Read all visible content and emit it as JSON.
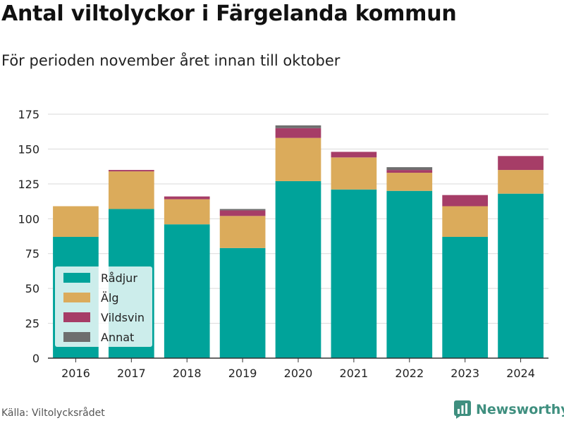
{
  "title": "Antal viltolyckor i Färgelanda kommun",
  "subtitle": "För perioden november året innan till oktober",
  "source": "Källa: Viltolycksrådet",
  "brand": {
    "name": "Newsworthy",
    "icon": "newsworthy-logo-icon",
    "color": "#3f8f7f"
  },
  "chart_data": {
    "type": "bar",
    "stacked": true,
    "categories": [
      "2016",
      "2017",
      "2018",
      "2019",
      "2020",
      "2021",
      "2022",
      "2023",
      "2024"
    ],
    "series": [
      {
        "name": "Rådjur",
        "color": "#00a39a",
        "values": [
          87,
          107,
          96,
          79,
          127,
          121,
          120,
          87,
          118
        ]
      },
      {
        "name": "Älg",
        "color": "#dbab5b",
        "values": [
          22,
          27,
          18,
          23,
          31,
          23,
          13,
          22,
          17
        ]
      },
      {
        "name": "Vildsvin",
        "color": "#a63d67",
        "values": [
          0,
          1,
          2,
          4,
          7,
          4,
          2,
          8,
          10
        ]
      },
      {
        "name": "Annat",
        "color": "#6e6e6e",
        "values": [
          0,
          0,
          0,
          1,
          2,
          0,
          2,
          0,
          0
        ]
      }
    ],
    "y_ticks": [
      "0",
      "25",
      "50",
      "75",
      "100",
      "125",
      "150",
      "175"
    ],
    "ylim": [
      0,
      175
    ],
    "grid": true,
    "legend_position": "bottom-left",
    "xlabel": "",
    "ylabel": ""
  }
}
